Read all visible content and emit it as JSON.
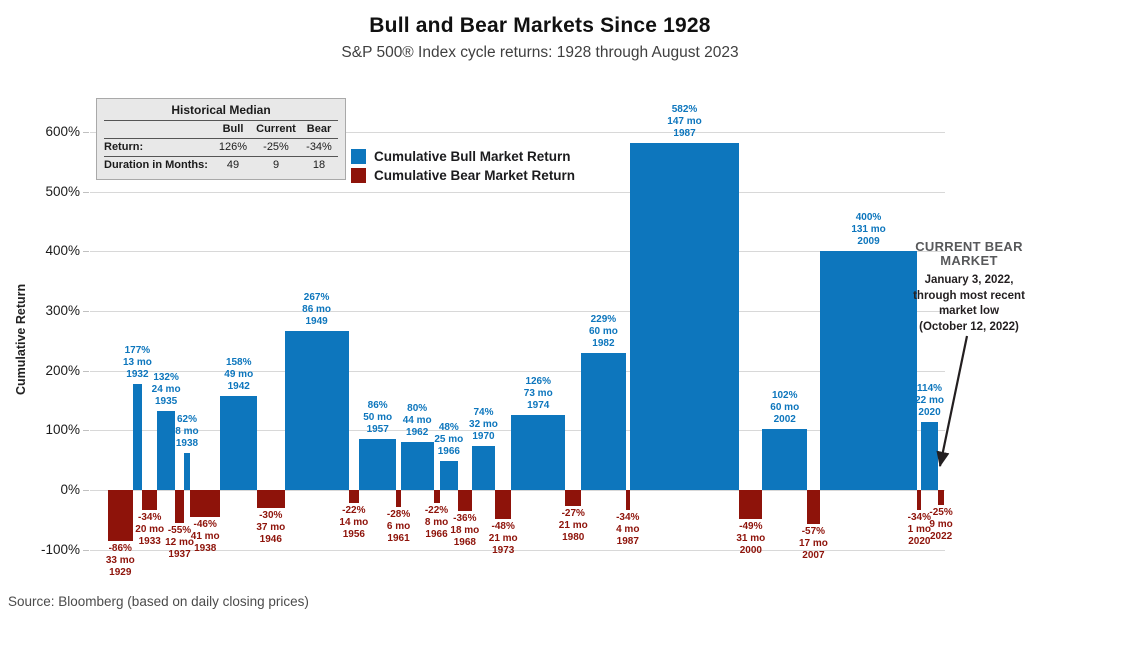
{
  "header": {
    "title": "Bull and Bear Markets Since 1928",
    "subtitle": "S&P 500® Index cycle returns: 1928 through August 2023"
  },
  "median_table": {
    "title": "Historical Median",
    "columns": [
      "Bull",
      "Current",
      "Bear"
    ],
    "rows": [
      {
        "label": "Return:",
        "values": [
          "126%",
          "-25%",
          "-34%"
        ]
      },
      {
        "label": "Duration in Months:",
        "values": [
          "49",
          "9",
          "18"
        ]
      }
    ]
  },
  "legend": [
    {
      "label": "Cumulative Bull Market Return",
      "color": "#0d76bd"
    },
    {
      "label": "Cumulative Bear Market Return",
      "color": "#8e130a"
    }
  ],
  "annotation": {
    "title": "CURRENT BEAR MARKET",
    "lines": [
      "January 3, 2022,",
      "through most recent",
      "market low",
      "(October 12, 2022)"
    ]
  },
  "source": "Source: Bloomberg (based on daily closing prices)",
  "chart_data": {
    "type": "bar",
    "title": "Bull and Bear Markets Since 1928",
    "subtitle": "S&P 500® Index cycle returns: 1928 through August 2023",
    "xlabel": "",
    "ylabel": "Cumulative Return",
    "unit": "%",
    "yticks": [
      600,
      500,
      400,
      300,
      200,
      100,
      0,
      -100
    ],
    "ylim": [
      -100,
      650
    ],
    "grid": true,
    "legend_position": "top-left-inside",
    "series_colors": {
      "bull": "#0d76bd",
      "bear": "#8e130a"
    },
    "bar_width_encodes": "duration in months",
    "bars": [
      {
        "type": "bear",
        "value": -86,
        "months": 33,
        "year": "1929"
      },
      {
        "type": "bull",
        "value": 177,
        "months": 13,
        "year": "1932"
      },
      {
        "type": "bear",
        "value": -34,
        "months": 20,
        "year": "1933"
      },
      {
        "type": "bull",
        "value": 132,
        "months": 24,
        "year": "1935"
      },
      {
        "type": "bear",
        "value": -55,
        "months": 12,
        "year": "1937"
      },
      {
        "type": "bull",
        "value": 62,
        "months": 8,
        "year": "1938"
      },
      {
        "type": "bear",
        "value": -46,
        "months": 41,
        "year": "1938"
      },
      {
        "type": "bull",
        "value": 158,
        "months": 49,
        "year": "1942"
      },
      {
        "type": "bear",
        "value": -30,
        "months": 37,
        "year": "1946"
      },
      {
        "type": "bull",
        "value": 267,
        "months": 86,
        "year": "1949"
      },
      {
        "type": "bear",
        "value": -22,
        "months": 14,
        "year": "1956"
      },
      {
        "type": "bull",
        "value": 86,
        "months": 50,
        "year": "1957"
      },
      {
        "type": "bear",
        "value": -28,
        "months": 6,
        "year": "1961"
      },
      {
        "type": "bull",
        "value": 80,
        "months": 44,
        "year": "1962"
      },
      {
        "type": "bear",
        "value": -22,
        "months": 8,
        "year": "1966"
      },
      {
        "type": "bull",
        "value": 48,
        "months": 25,
        "year": "1966"
      },
      {
        "type": "bear",
        "value": -36,
        "months": 18,
        "year": "1968"
      },
      {
        "type": "bull",
        "value": 74,
        "months": 32,
        "year": "1970"
      },
      {
        "type": "bear",
        "value": -48,
        "months": 21,
        "year": "1973"
      },
      {
        "type": "bull",
        "value": 126,
        "months": 73,
        "year": "1974"
      },
      {
        "type": "bear",
        "value": -27,
        "months": 21,
        "year": "1980"
      },
      {
        "type": "bull",
        "value": 229,
        "months": 60,
        "year": "1982"
      },
      {
        "type": "bear",
        "value": -34,
        "months": 4,
        "year": "1987"
      },
      {
        "type": "bull",
        "value": 582,
        "months": 147,
        "year": "1987"
      },
      {
        "type": "bear",
        "value": -49,
        "months": 31,
        "year": "2000"
      },
      {
        "type": "bull",
        "value": 102,
        "months": 60,
        "year": "2002"
      },
      {
        "type": "bear",
        "value": -57,
        "months": 17,
        "year": "2007"
      },
      {
        "type": "bull",
        "value": 400,
        "months": 131,
        "year": "2009"
      },
      {
        "type": "bear",
        "value": -34,
        "months": 1,
        "year": "2020"
      },
      {
        "type": "bull",
        "value": 114,
        "months": 22,
        "year": "2020"
      },
      {
        "type": "bear",
        "value": -25,
        "months": 9,
        "year": "2022"
      }
    ]
  }
}
